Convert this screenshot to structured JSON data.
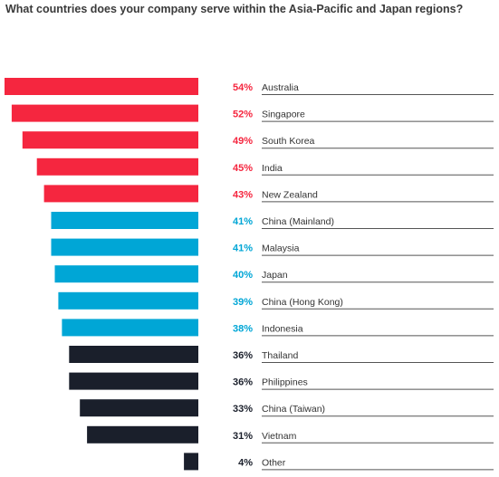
{
  "chart_data": {
    "type": "bar",
    "orientation": "horizontal",
    "title": "What countries does your company serve within the Asia-Pacific and Japan regions?",
    "unit": "%",
    "xlim": [
      0,
      54
    ],
    "grid": false,
    "legend": "none",
    "colors": {
      "high": "#f5263f",
      "mid": "#00a6d6",
      "low": "#1a1f2b"
    },
    "bars": [
      {
        "label": "Australia",
        "value": 54,
        "pct_label": "54%",
        "group": "high"
      },
      {
        "label": "Singapore",
        "value": 52,
        "pct_label": "52%",
        "group": "high"
      },
      {
        "label": "South Korea",
        "value": 49,
        "pct_label": "49%",
        "group": "high"
      },
      {
        "label": "India",
        "value": 45,
        "pct_label": "45%",
        "group": "high"
      },
      {
        "label": "New Zealand",
        "value": 43,
        "pct_label": "43%",
        "group": "high"
      },
      {
        "label": "China (Mainland)",
        "value": 41,
        "pct_label": "41%",
        "group": "mid"
      },
      {
        "label": "Malaysia",
        "value": 41,
        "pct_label": "41%",
        "group": "mid"
      },
      {
        "label": "Japan",
        "value": 40,
        "pct_label": "40%",
        "group": "mid"
      },
      {
        "label": "China (Hong Kong)",
        "value": 39,
        "pct_label": "39%",
        "group": "mid"
      },
      {
        "label": "Indonesia",
        "value": 38,
        "pct_label": "38%",
        "group": "mid"
      },
      {
        "label": "Thailand",
        "value": 36,
        "pct_label": "36%",
        "group": "low"
      },
      {
        "label": "Philippines",
        "value": 36,
        "pct_label": "36%",
        "group": "low"
      },
      {
        "label": "China (Taiwan)",
        "value": 33,
        "pct_label": "33%",
        "group": "low"
      },
      {
        "label": "Vietnam",
        "value": 31,
        "pct_label": "31%",
        "group": "low"
      },
      {
        "label": "Other",
        "value": 4,
        "pct_label": "4%",
        "group": "low"
      }
    ]
  }
}
